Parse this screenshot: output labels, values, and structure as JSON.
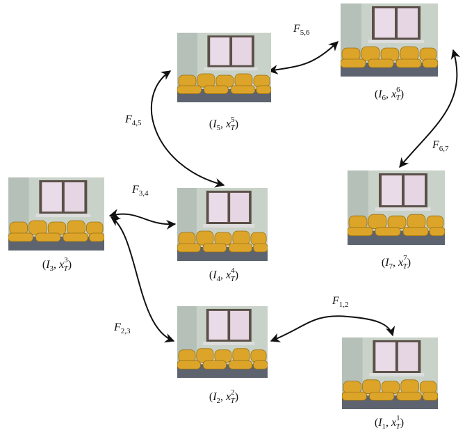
{
  "nodes": [
    {
      "open": "(",
      "image": "I",
      "image_sub": "1",
      "sep": ", ",
      "x": "x",
      "x_sub": "T",
      "x_sup": "1",
      "close": ")"
    },
    {
      "open": "(",
      "image": "I",
      "image_sub": "2",
      "sep": ", ",
      "x": "x",
      "x_sub": "T",
      "x_sup": "2",
      "close": ")"
    },
    {
      "open": "(",
      "image": "I",
      "image_sub": "3",
      "sep": ", ",
      "x": "x",
      "x_sub": "T",
      "x_sup": "3",
      "close": ")"
    },
    {
      "open": "(",
      "image": "I",
      "image_sub": "4",
      "sep": ", ",
      "x": "x",
      "x_sub": "T",
      "x_sup": "4",
      "close": ")"
    },
    {
      "open": "(",
      "image": "I",
      "image_sub": "5",
      "sep": ", ",
      "x": "x",
      "x_sub": "T",
      "x_sup": "5",
      "close": ")"
    },
    {
      "open": "(",
      "image": "I",
      "image_sub": "6",
      "sep": ", ",
      "x": "x",
      "x_sub": "T",
      "x_sup": "6",
      "close": ")"
    },
    {
      "open": "(",
      "image": "I",
      "image_sub": "7",
      "sep": ", ",
      "x": "x",
      "x_sub": "T",
      "x_sup": "7",
      "close": ")"
    }
  ],
  "edges": [
    {
      "base": "F",
      "sub": "1,2"
    },
    {
      "base": "F",
      "sub": "2,3"
    },
    {
      "base": "F",
      "sub": "3,4"
    },
    {
      "base": "F",
      "sub": "4,5"
    },
    {
      "base": "F",
      "sub": "5,6"
    },
    {
      "base": "F",
      "sub": "6,7"
    }
  ]
}
